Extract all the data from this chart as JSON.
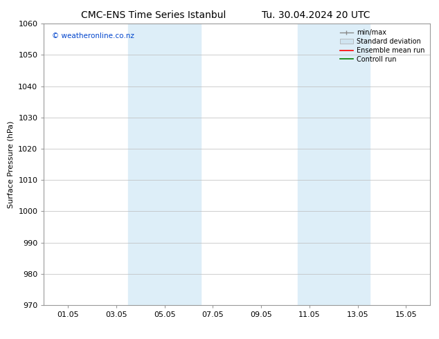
{
  "title_left": "CMC-ENS Time Series Istanbul",
  "title_right": "Tu. 30.04.2024 20 UTC",
  "ylabel": "Surface Pressure (hPa)",
  "ylim": [
    970,
    1060
  ],
  "yticks": [
    970,
    980,
    990,
    1000,
    1010,
    1020,
    1030,
    1040,
    1050,
    1060
  ],
  "xtick_labels": [
    "01.05",
    "03.05",
    "05.05",
    "07.05",
    "09.05",
    "11.05",
    "13.05",
    "15.05"
  ],
  "xtick_positions": [
    1,
    3,
    5,
    7,
    9,
    11,
    13,
    15
  ],
  "xlim": [
    0,
    16
  ],
  "shaded_bands": [
    {
      "x_start": 3.5,
      "x_end": 5.5
    },
    {
      "x_start": 5.5,
      "x_end": 6.5
    },
    {
      "x_start": 10.5,
      "x_end": 12.0
    },
    {
      "x_start": 12.0,
      "x_end": 13.5
    }
  ],
  "shade_color_dark": "#cce0f0",
  "shade_color_light": "#ddeef8",
  "watermark_text": "© weatheronline.co.nz",
  "watermark_color": "#0044cc",
  "legend_labels": [
    "min/max",
    "Standard deviation",
    "Ensemble mean run",
    "Controll run"
  ],
  "legend_colors": [
    "#aaaaaa",
    "#ccddee",
    "red",
    "green"
  ],
  "bg_color": "#ffffff",
  "plot_bg": "#ffffff",
  "grid_color": "#bbbbbb",
  "spine_color": "#999999",
  "title_fontsize": 10,
  "label_fontsize": 8,
  "tick_fontsize": 8
}
